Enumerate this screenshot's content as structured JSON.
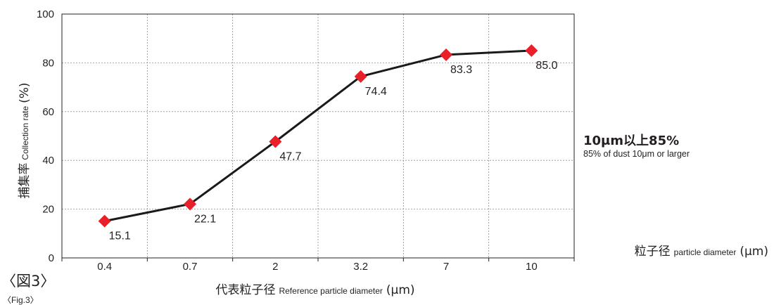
{
  "figure": {
    "label_ja": "〈図3〉",
    "label_en": "〈Fig.3〉"
  },
  "annotation": {
    "title": "10μm以上85%",
    "subtitle": "85% of dust 10μm or larger"
  },
  "colors": {
    "line": "#1a1a1a",
    "marker": "#e8202a",
    "grid": "#8c8c8c",
    "axis": "#231f20"
  },
  "chart_data": {
    "type": "line",
    "categories": [
      "0.4",
      "0.7",
      "2",
      "3.2",
      "7",
      "10"
    ],
    "series": [
      {
        "values": [
          15.1,
          22.1,
          47.7,
          74.4,
          83.3,
          85.0
        ],
        "labels": [
          "15.1",
          "22.1",
          "47.7",
          "74.4",
          "83.3",
          "85.0"
        ],
        "marker": "diamond"
      }
    ],
    "ylim": [
      0,
      100
    ],
    "yticks": [
      0,
      20,
      40,
      60,
      80,
      100
    ],
    "grid": true,
    "ylabel": {
      "ja": "捕集率",
      "en": "Collection rate",
      "unit": "(%)"
    },
    "xlabel": {
      "ja": "代表粒子径",
      "en": "Reference particle diameter",
      "unit": "(μm)"
    },
    "side_xlabel": {
      "ja": "粒子径",
      "en": "particle diameter",
      "unit": "(μm)"
    }
  }
}
